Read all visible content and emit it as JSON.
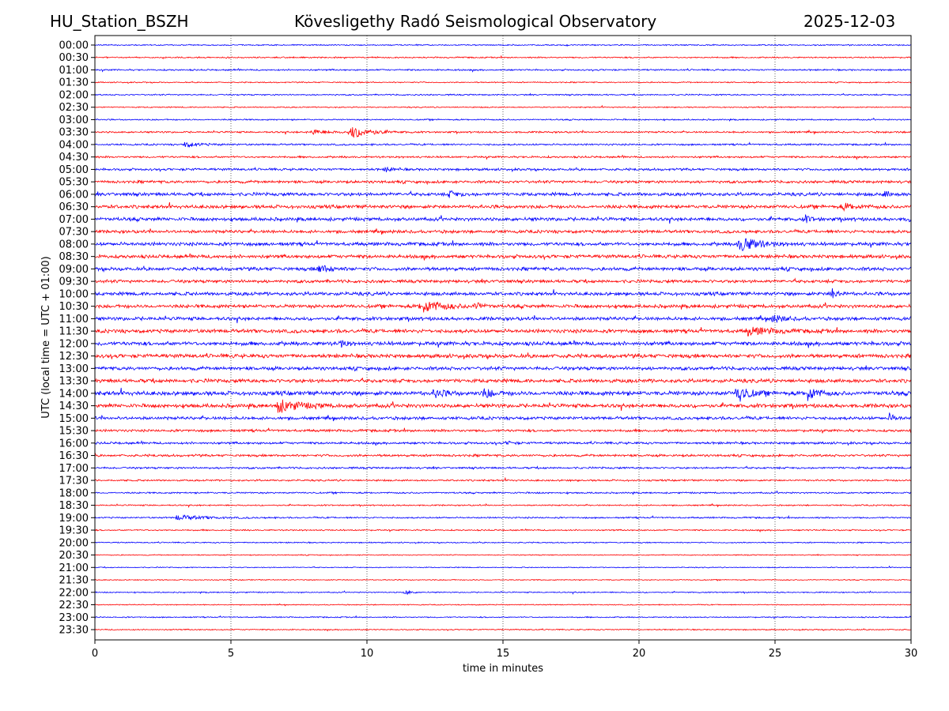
{
  "chart_data": {
    "type": "line",
    "title_left": "HU_Station_BSZH",
    "title": "Kövesligethy Radó Seismological Observatory",
    "title_right": "2025-12-03",
    "xlabel": "time in minutes",
    "ylabel": "UTC (local time = UTC + 01:00)",
    "xlim": [
      0,
      30
    ],
    "xticks": [
      "0",
      "5",
      "10",
      "15",
      "20",
      "25",
      "30"
    ],
    "grid": "vertical dotted every 5 minutes",
    "colors": [
      "#0000ff",
      "#ff0000"
    ],
    "rows": [
      "00:00",
      "00:30",
      "01:00",
      "01:30",
      "02:00",
      "02:30",
      "03:00",
      "03:30",
      "04:00",
      "04:30",
      "05:00",
      "05:30",
      "06:00",
      "06:30",
      "07:00",
      "07:30",
      "08:00",
      "08:30",
      "09:00",
      "09:30",
      "10:00",
      "10:30",
      "11:00",
      "11:30",
      "12:00",
      "12:30",
      "13:00",
      "13:30",
      "14:00",
      "14:30",
      "15:00",
      "15:30",
      "16:00",
      "16:30",
      "17:00",
      "17:30",
      "18:00",
      "18:30",
      "19:00",
      "19:30",
      "20:00",
      "20:30",
      "21:00",
      "21:30",
      "22:00",
      "22:30",
      "23:00",
      "23:30"
    ],
    "noise_level": [
      0.6,
      0.7,
      0.8,
      0.6,
      0.7,
      0.6,
      0.7,
      0.9,
      0.9,
      1.0,
      1.2,
      1.4,
      1.7,
      1.8,
      1.8,
      1.6,
      1.8,
      1.8,
      1.8,
      1.6,
      1.8,
      1.8,
      1.8,
      1.9,
      2.0,
      2.0,
      1.8,
      1.9,
      2.2,
      2.0,
      1.6,
      1.3,
      1.2,
      1.2,
      1.0,
      0.9,
      0.8,
      0.7,
      0.8,
      0.7,
      0.6,
      0.5,
      0.5,
      0.5,
      0.6,
      0.5,
      0.6,
      0.6
    ],
    "events": [
      {
        "row": 7,
        "minute": 9.4,
        "amp": 8,
        "dur": 1.2
      },
      {
        "row": 7,
        "minute": 8.0,
        "amp": 3,
        "dur": 1.0
      },
      {
        "row": 8,
        "minute": 3.3,
        "amp": 3,
        "dur": 1.0
      },
      {
        "row": 10,
        "minute": 10.7,
        "amp": 3,
        "dur": 0.5
      },
      {
        "row": 12,
        "minute": 13.0,
        "amp": 4,
        "dur": 0.6
      },
      {
        "row": 12,
        "minute": 29.0,
        "amp": 4,
        "dur": 0.4
      },
      {
        "row": 13,
        "minute": 27.5,
        "amp": 4,
        "dur": 0.8
      },
      {
        "row": 14,
        "minute": 29.9,
        "amp": 4,
        "dur": 0.4
      },
      {
        "row": 14,
        "minute": 26.1,
        "amp": 4,
        "dur": 0.4
      },
      {
        "row": 16,
        "minute": 23.7,
        "amp": 9,
        "dur": 1.2
      },
      {
        "row": 18,
        "minute": 8.2,
        "amp": 5,
        "dur": 0.8
      },
      {
        "row": 20,
        "minute": 27.1,
        "amp": 7,
        "dur": 0.4
      },
      {
        "row": 21,
        "minute": 12.0,
        "amp": 8,
        "dur": 1.4
      },
      {
        "row": 21,
        "minute": 14.0,
        "amp": 6,
        "dur": 0.3
      },
      {
        "row": 22,
        "minute": 24.9,
        "amp": 5,
        "dur": 0.7
      },
      {
        "row": 23,
        "minute": 24.0,
        "amp": 5,
        "dur": 1.5
      },
      {
        "row": 24,
        "minute": 9.0,
        "amp": 5,
        "dur": 0.4
      },
      {
        "row": 28,
        "minute": 23.65,
        "amp": 14,
        "dur": 0.6
      },
      {
        "row": 28,
        "minute": 26.2,
        "amp": 9,
        "dur": 0.6
      },
      {
        "row": 28,
        "minute": 12.5,
        "amp": 6,
        "dur": 0.6
      },
      {
        "row": 28,
        "minute": 14.3,
        "amp": 6,
        "dur": 0.6
      },
      {
        "row": 29,
        "minute": 6.7,
        "amp": 8,
        "dur": 1.5
      },
      {
        "row": 30,
        "minute": 29.2,
        "amp": 5,
        "dur": 0.4
      },
      {
        "row": 32,
        "minute": 15.2,
        "amp": 3,
        "dur": 0.3
      },
      {
        "row": 38,
        "minute": 3.0,
        "amp": 3,
        "dur": 1.8
      },
      {
        "row": 44,
        "minute": 11.4,
        "amp": 3,
        "dur": 0.4
      }
    ]
  }
}
